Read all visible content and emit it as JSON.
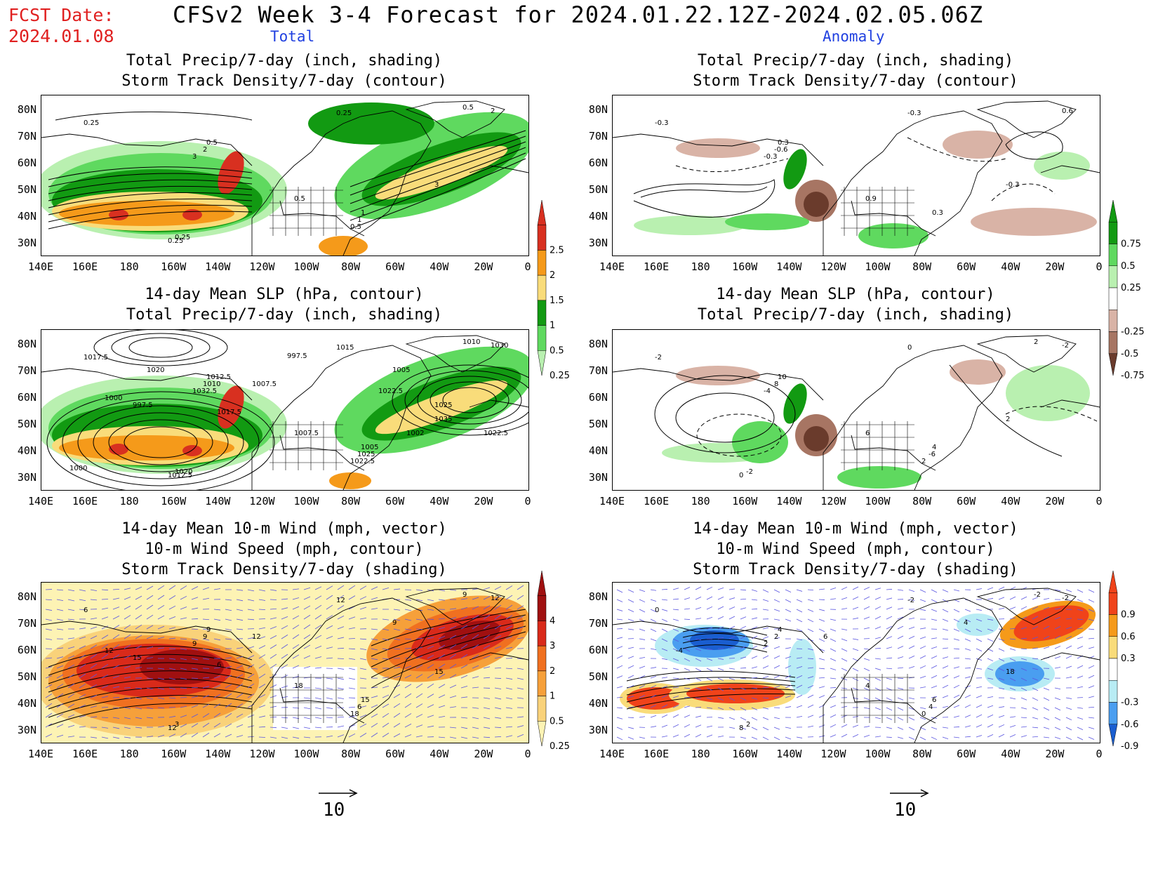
{
  "header": {
    "fcst_line1": "FCST Date:",
    "fcst_line2": "2024.01.08",
    "title": "CFSv2 Week 3-4 Forecast for 2024.01.22.12Z-2024.02.05.06Z",
    "col_total": "Total",
    "col_anomaly": "Anomaly"
  },
  "panels": {
    "p1": {
      "l1": "Total Precip/7-day (inch, shading)",
      "l2": "Storm Track Density/7-day (contour)"
    },
    "p2": {
      "l1": "Total Precip/7-day (inch, shading)",
      "l2": "Storm Track Density/7-day (contour)"
    },
    "p3": {
      "l1": "14-day Mean SLP (hPa, contour)",
      "l2": "Total Precip/7-day (inch, shading)"
    },
    "p4": {
      "l1": "14-day Mean SLP (hPa, contour)",
      "l2": "Total Precip/7-day (inch, shading)"
    },
    "p5": {
      "l1": "14-day Mean 10-m Wind (mph, vector)",
      "l2": "10-m Wind Speed (mph, contour)",
      "l3": "Storm Track Density/7-day (shading)"
    },
    "p6": {
      "l1": "14-day Mean 10-m Wind (mph, vector)",
      "l2": "10-m Wind Speed (mph, contour)",
      "l3": "Storm Track Density/7-day (shading)"
    }
  },
  "axes": {
    "lat": [
      "80N",
      "70N",
      "60N",
      "50N",
      "40N",
      "30N"
    ],
    "lon": [
      "140E",
      "160E",
      "180",
      "160W",
      "140W",
      "120W",
      "100W",
      "80W",
      "60W",
      "40W",
      "20W",
      "0"
    ]
  },
  "colorbars": {
    "precip_total": {
      "labels": [
        "2.5",
        "2",
        "1.5",
        "1",
        "0.5",
        "0.25"
      ],
      "colors": [
        "#d83020",
        "#f59a1a",
        "#f9dc7a",
        "#129a12",
        "#5fd95f",
        "#b9f0b0"
      ]
    },
    "precip_anom": {
      "labels": [
        "0.75",
        "0.5",
        "0.25",
        "-0.25",
        "-0.5",
        "-0.75"
      ],
      "colors": [
        "#129a12",
        "#5fd95f",
        "#b9f0b0",
        "#ffffff",
        "#d9b3a6",
        "#a77563",
        "#6a3b2c"
      ]
    },
    "storm_total": {
      "labels": [
        "4",
        "3",
        "2",
        "1",
        "0.5",
        "0.25"
      ],
      "colors": [
        "#a01010",
        "#d92a1a",
        "#f07020",
        "#f6a03a",
        "#f9d27a",
        "#fdf3b4"
      ]
    },
    "storm_anom": {
      "labels": [
        "0.9",
        "0.6",
        "0.3",
        "-0.3",
        "-0.6",
        "-0.9"
      ],
      "colors": [
        "#f0431a",
        "#f59a1a",
        "#f9dc7a",
        "#ffffff",
        "#b8ecf4",
        "#4a9ef0",
        "#1a5ed0"
      ]
    }
  },
  "contour_labels": {
    "p1": [
      "0.25",
      "0.25",
      "0.5",
      "2",
      "0.5",
      "1",
      "3",
      "2",
      "3",
      "1",
      "0.5",
      "0.25",
      "0.5",
      "0.25"
    ],
    "p2": [
      "-0.3",
      "-0.3",
      "0.3",
      "-0.6",
      "0.9",
      "0.3",
      "-0.3",
      "0.6",
      "-0.3"
    ],
    "p3": [
      "1017.5",
      "1015",
      "1012.5",
      "1010",
      "1007.5",
      "1005",
      "1035",
      "1030",
      "1032.5",
      "1025",
      "1022.5",
      "1012.5",
      "1010",
      "1020",
      "1007.5",
      "1005",
      "1000",
      "997.5",
      "1017.5",
      "1025",
      "1022.5",
      "1020",
      "997.5",
      "1022.5",
      "1002",
      "1000"
    ],
    "p4": [
      "-2",
      "0",
      "10",
      "8",
      "6",
      "4",
      "2",
      "-2",
      "-4",
      "-6",
      "2",
      "0",
      "2",
      "-2"
    ],
    "p5": [
      "6",
      "12",
      "9",
      "9",
      "18",
      "15",
      "15",
      "12",
      "9",
      "6",
      "18",
      "12",
      "9",
      "3",
      "12",
      "9",
      "12",
      "15",
      "6"
    ],
    "p6": [
      "0",
      "-2",
      "4",
      "2",
      "4",
      "6",
      "18",
      "-2",
      "2",
      "4",
      "0",
      "8",
      "-2",
      "2",
      "6",
      "4",
      "-4"
    ]
  },
  "vector_ref": {
    "value": "10"
  }
}
